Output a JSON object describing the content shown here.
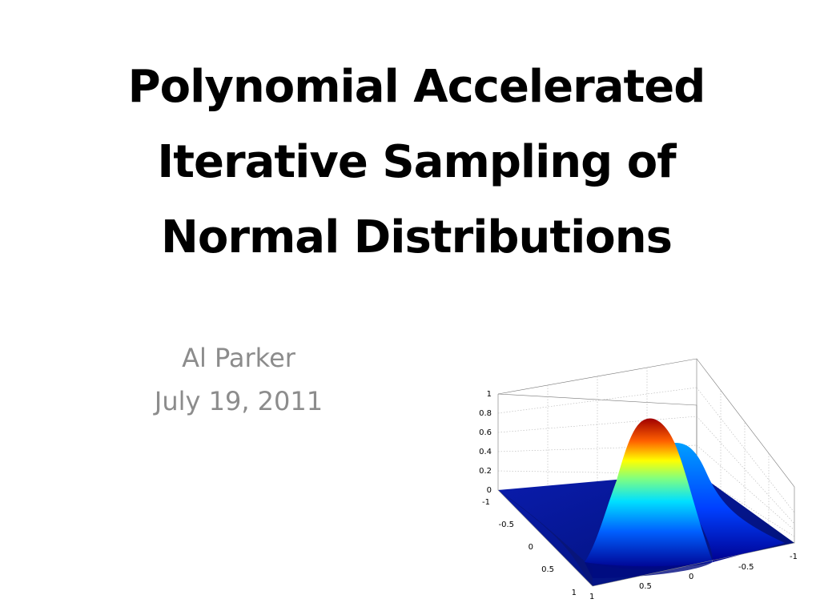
{
  "slide": {
    "title_lines": [
      "Polynomial Accelerated",
      "Iterative Sampling of",
      "Normal Distributions"
    ],
    "author": "Al Parker",
    "date": "July 19, 2011"
  },
  "figure": {
    "type": "surface-3d",
    "colormap": "jet",
    "grid": true,
    "z_ticks": [
      "1",
      "0.8",
      "0.6",
      "0.4",
      "0.2",
      "0"
    ],
    "y_ticks": [
      "-1",
      "-0.5",
      "0",
      "0.5",
      "1"
    ],
    "x_ticks": [
      "1",
      "0.5",
      "0",
      "-0.5",
      "-1"
    ],
    "colors": {
      "peak": "#c00000",
      "base": "#0a14a0"
    }
  }
}
